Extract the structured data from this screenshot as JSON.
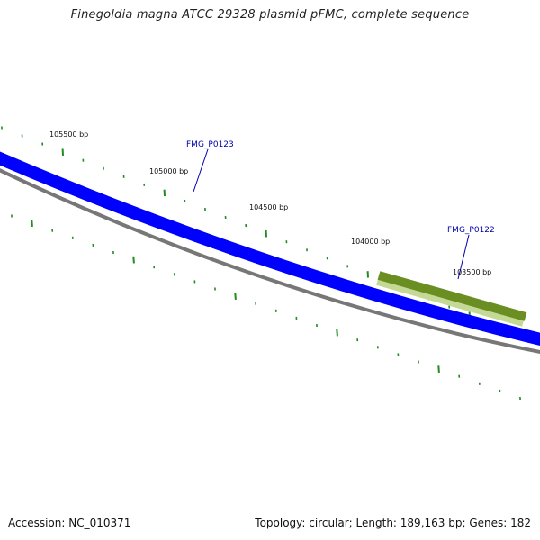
{
  "title": "Finegoldia magna ATCC 29328 plasmid pFMC, complete sequence",
  "footer": {
    "accession": "Accession: NC_010371",
    "summary": "Topology: circular; Length: 189,163 bp; Genes: 182"
  },
  "position_labels": [
    "105500 bp",
    "105000 bp",
    "104500 bp",
    "104000 bp",
    "103500 bp"
  ],
  "genes": [
    {
      "name": "FMG_P0123",
      "color": "#0000ff",
      "label_color": "#0000aa",
      "strand": "reverse"
    },
    {
      "name": "FMG_P0122",
      "color": "#6b8e23",
      "label_color": "#0000aa",
      "strand": "forward"
    }
  ],
  "colors": {
    "backbone": "#777777",
    "ticks": "#228b22",
    "forward_strand": "#6b8e23",
    "reverse_strand": "#0000ff"
  }
}
